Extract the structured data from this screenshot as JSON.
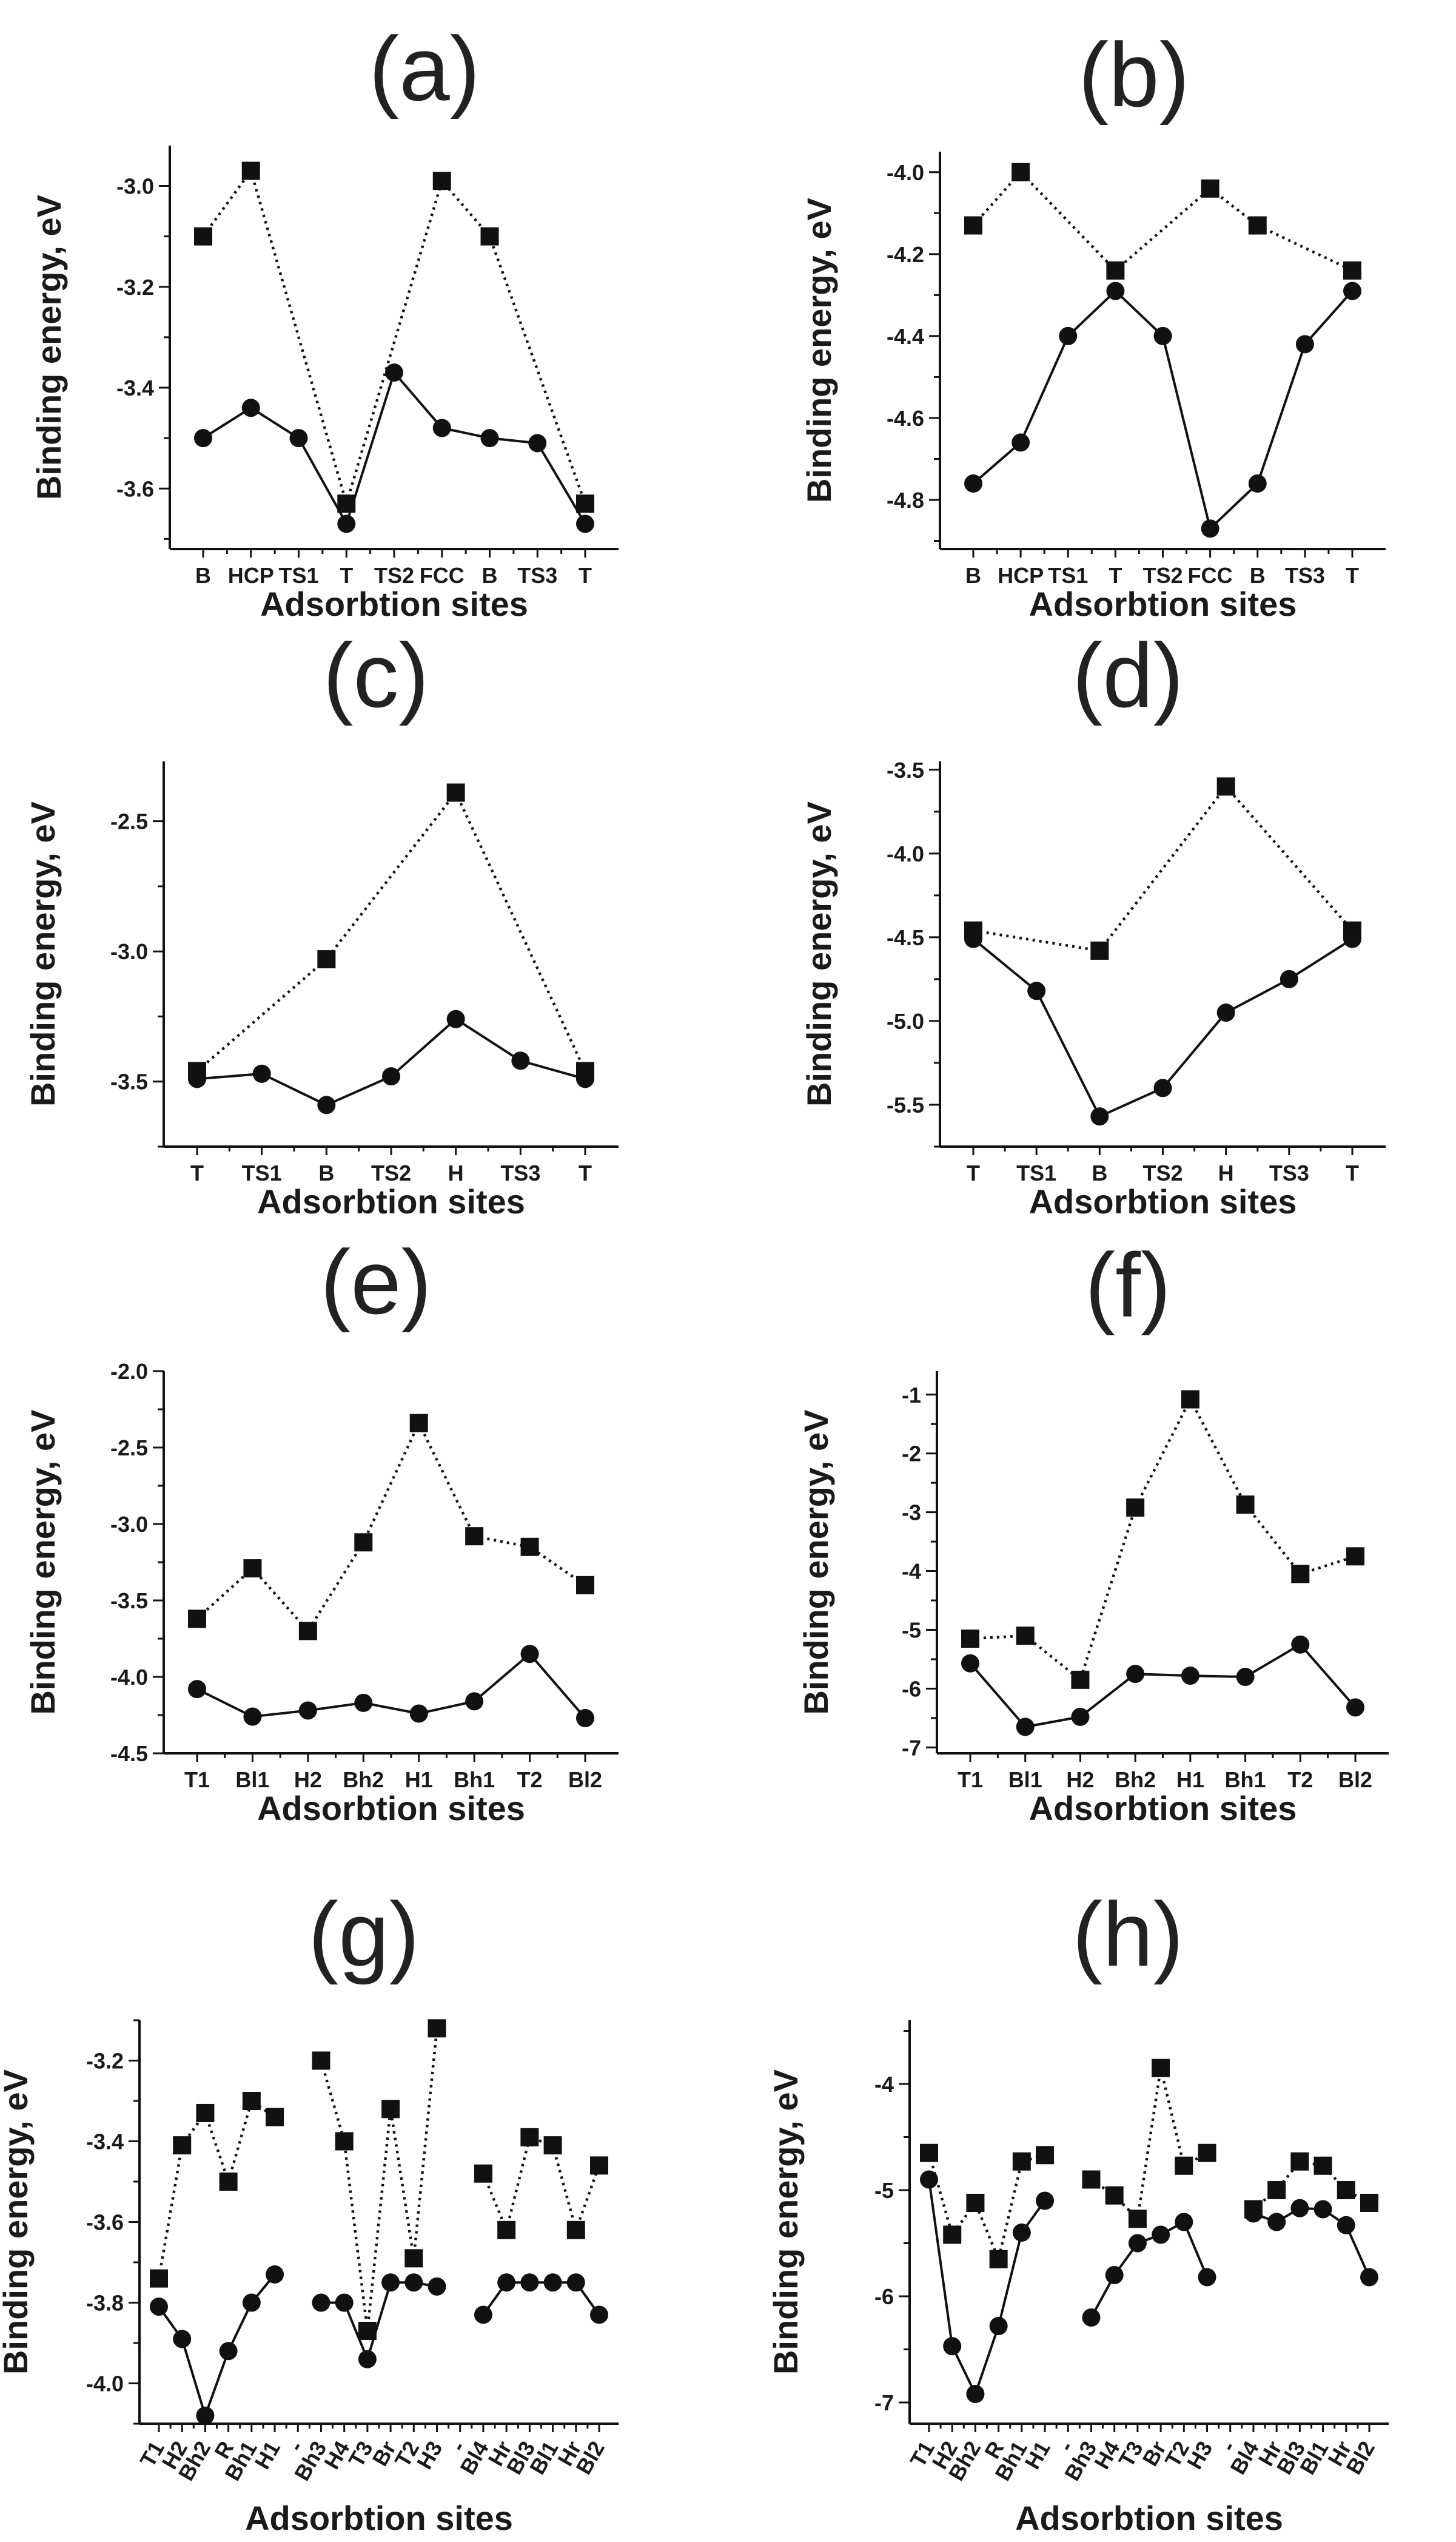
{
  "figure": {
    "panels": [
      "(a)",
      "(b)",
      "(c)",
      "(d)",
      "(e)",
      "(f)",
      "(g)",
      "(h)"
    ]
  },
  "style": {
    "line_color": "#111111",
    "marker_color": "#111111",
    "background": "#ffffff"
  },
  "chart_data": [
    {
      "type": "line",
      "panel": "(a)",
      "xlabel": "Adsorbtion sites",
      "ylabel": "Binding energy, eV",
      "categories": [
        "B",
        "HCP",
        "TS1",
        "T",
        "TS2",
        "FCC",
        "B",
        "TS3",
        "T"
      ],
      "ylim": [
        -3.72,
        -2.92
      ],
      "yticks": [
        -3.6,
        -3.4,
        -3.2,
        -3.0
      ],
      "ytick_labels": [
        "-3.6",
        "-3.4",
        "-3.2",
        "-3.0"
      ],
      "grid": false,
      "series": [
        {
          "marker": "square",
          "line": "dotted",
          "points": [
            [
              0,
              -3.1
            ],
            [
              1,
              -2.97
            ],
            [
              3,
              -3.63
            ],
            [
              5,
              -2.99
            ],
            [
              6,
              -3.1
            ],
            [
              8,
              -3.63
            ]
          ]
        },
        {
          "marker": "circle",
          "line": "solid",
          "points": [
            [
              0,
              -3.5
            ],
            [
              1,
              -3.44
            ],
            [
              2,
              -3.5
            ],
            [
              3,
              -3.67
            ],
            [
              4,
              -3.37
            ],
            [
              5,
              -3.48
            ],
            [
              6,
              -3.5
            ],
            [
              7,
              -3.51
            ],
            [
              8,
              -3.67
            ]
          ]
        }
      ]
    },
    {
      "type": "line",
      "panel": "(b)",
      "xlabel": "Adsorbtion sites",
      "ylabel": "Binding energy, eV",
      "categories": [
        "B",
        "HCP",
        "TS1",
        "T",
        "TS2",
        "FCC",
        "B",
        "TS3",
        "T"
      ],
      "ylim": [
        -4.92,
        -3.95
      ],
      "yticks": [
        -4.8,
        -4.6,
        -4.4,
        -4.2,
        -4.0
      ],
      "ytick_labels": [
        "-4.8",
        "-4.6",
        "-4.4",
        "-4.2",
        "-4.0"
      ],
      "grid": false,
      "series": [
        {
          "marker": "square",
          "line": "dotted",
          "points": [
            [
              0,
              -4.13
            ],
            [
              1,
              -4.0
            ],
            [
              3,
              -4.24
            ],
            [
              5,
              -4.04
            ],
            [
              6,
              -4.13
            ],
            [
              8,
              -4.24
            ]
          ]
        },
        {
          "marker": "circle",
          "line": "solid",
          "points": [
            [
              0,
              -4.76
            ],
            [
              1,
              -4.66
            ],
            [
              2,
              -4.4
            ],
            [
              3,
              -4.29
            ],
            [
              4,
              -4.4
            ],
            [
              5,
              -4.87
            ],
            [
              6,
              -4.76
            ],
            [
              7,
              -4.42
            ],
            [
              8,
              -4.29
            ]
          ]
        }
      ]
    },
    {
      "type": "line",
      "panel": "(c)",
      "xlabel": "Adsorbtion sites",
      "ylabel": "Binding energy, eV",
      "categories": [
        "T",
        "TS1",
        "B",
        "TS2",
        "H",
        "TS3",
        "T"
      ],
      "ylim": [
        -3.75,
        -2.27
      ],
      "yticks": [
        -3.5,
        -3.0,
        -2.5
      ],
      "ytick_labels": [
        "-3.5",
        "-3.0",
        "-2.5"
      ],
      "grid": false,
      "series": [
        {
          "marker": "square",
          "line": "dotted",
          "points": [
            [
              0,
              -3.46
            ],
            [
              2,
              -3.03
            ],
            [
              4,
              -2.39
            ],
            [
              6,
              -3.46
            ]
          ]
        },
        {
          "marker": "circle",
          "line": "solid",
          "points": [
            [
              0,
              -3.49
            ],
            [
              1,
              -3.47
            ],
            [
              2,
              -3.59
            ],
            [
              3,
              -3.48
            ],
            [
              4,
              -3.26
            ],
            [
              5,
              -3.42
            ],
            [
              6,
              -3.49
            ]
          ]
        }
      ]
    },
    {
      "type": "line",
      "panel": "(d)",
      "xlabel": "Adsorbtion sites",
      "ylabel": "Binding energy, eV",
      "categories": [
        "T",
        "TS1",
        "B",
        "TS2",
        "H",
        "TS3",
        "T"
      ],
      "ylim": [
        -5.75,
        -3.45
      ],
      "yticks": [
        -5.5,
        -5.0,
        -4.5,
        -4.0,
        -3.5
      ],
      "ytick_labels": [
        "-5.5",
        "-5.0",
        "-4.5",
        "-4.0",
        "-3.5"
      ],
      "grid": false,
      "series": [
        {
          "marker": "square",
          "line": "dotted",
          "points": [
            [
              0,
              -4.46
            ],
            [
              2,
              -4.58
            ],
            [
              4,
              -3.6
            ],
            [
              6,
              -4.46
            ]
          ]
        },
        {
          "marker": "circle",
          "line": "solid",
          "points": [
            [
              0,
              -4.51
            ],
            [
              1,
              -4.82
            ],
            [
              2,
              -5.57
            ],
            [
              3,
              -5.4
            ],
            [
              4,
              -4.95
            ],
            [
              5,
              -4.75
            ],
            [
              6,
              -4.51
            ]
          ]
        }
      ]
    },
    {
      "type": "line",
      "panel": "(e)",
      "xlabel": "Adsorbtion sites",
      "ylabel": "Binding energy, eV",
      "categories": [
        "T1",
        "Bl1",
        "H2",
        "Bh2",
        "H1",
        "Bh1",
        "T2",
        "Bl2"
      ],
      "ylim": [
        -4.5,
        -2.0
      ],
      "yticks": [
        -4.5,
        -4.0,
        -3.5,
        -3.0,
        -2.5,
        -2.0
      ],
      "ytick_labels": [
        "-4.5",
        "-4.0",
        "-3.5",
        "-3.0",
        "-2.5",
        "-2.0"
      ],
      "grid": false,
      "series": [
        {
          "marker": "square",
          "line": "dotted",
          "points": [
            [
              0,
              -3.62
            ],
            [
              1,
              -3.29
            ],
            [
              2,
              -3.7
            ],
            [
              3,
              -3.12
            ],
            [
              4,
              -2.34
            ],
            [
              5,
              -3.08
            ],
            [
              6,
              -3.15
            ],
            [
              7,
              -3.4
            ]
          ]
        },
        {
          "marker": "circle",
          "line": "solid",
          "points": [
            [
              0,
              -4.08
            ],
            [
              1,
              -4.26
            ],
            [
              2,
              -4.22
            ],
            [
              3,
              -4.17
            ],
            [
              4,
              -4.24
            ],
            [
              5,
              -4.16
            ],
            [
              6,
              -3.85
            ],
            [
              7,
              -4.27
            ]
          ]
        }
      ]
    },
    {
      "type": "line",
      "panel": "(f)",
      "xlabel": "Adsorbtion sites",
      "ylabel": "Binding energy, eV",
      "categories": [
        "T1",
        "Bl1",
        "H2",
        "Bh2",
        "H1",
        "Bh1",
        "T2",
        "Bl2"
      ],
      "ylim": [
        -7.1,
        -0.6
      ],
      "yticks": [
        -7,
        -6,
        -5,
        -4,
        -3,
        -2,
        -1
      ],
      "ytick_labels": [
        "-7",
        "-6",
        "-5",
        "-4",
        "-3",
        "-2",
        "-1"
      ],
      "grid": false,
      "series": [
        {
          "marker": "square",
          "line": "dotted",
          "points": [
            [
              0,
              -5.15
            ],
            [
              1,
              -5.1
            ],
            [
              2,
              -5.85
            ],
            [
              3,
              -2.92
            ],
            [
              4,
              -1.08
            ],
            [
              5,
              -2.87
            ],
            [
              6,
              -4.05
            ],
            [
              7,
              -3.75
            ]
          ]
        },
        {
          "marker": "circle",
          "line": "solid",
          "points": [
            [
              0,
              -5.57
            ],
            [
              1,
              -6.65
            ],
            [
              2,
              -6.48
            ],
            [
              3,
              -5.75
            ],
            [
              4,
              -5.78
            ],
            [
              5,
              -5.8
            ],
            [
              6,
              -5.25
            ],
            [
              7,
              -6.32
            ]
          ]
        }
      ]
    },
    {
      "type": "line",
      "panel": "(g)",
      "xlabel": "Adsorbtion sites",
      "ylabel": "Binding energy, eV",
      "categories": [
        "T1",
        "H2",
        "Bh2",
        "R",
        "Bh1",
        "H1",
        "-",
        "Bh3",
        "H4",
        "T3",
        "Br",
        "T2",
        "H3",
        "-",
        "Bl4",
        "Hr",
        "Bl3",
        "Bl1",
        "Hr",
        "Bl2"
      ],
      "ylim": [
        -4.1,
        -3.1
      ],
      "yticks": [
        -4.0,
        -3.8,
        -3.6,
        -3.4,
        -3.2
      ],
      "ytick_labels": [
        "-4.0",
        "-3.8",
        "-3.6",
        "-3.4",
        "-3.2"
      ],
      "grid": false,
      "series": [
        {
          "marker": "square",
          "line": "dotted",
          "points": [
            [
              0,
              -3.74
            ],
            [
              1,
              -3.41
            ],
            [
              2,
              -3.33
            ],
            [
              3,
              -3.5
            ],
            [
              4,
              -3.3
            ],
            [
              5,
              -3.34
            ],
            [
              null,
              null
            ],
            [
              7,
              -3.2
            ],
            [
              8,
              -3.4
            ],
            [
              9,
              -3.87
            ],
            [
              10,
              -3.32
            ],
            [
              11,
              -3.69
            ],
            [
              12,
              -3.12
            ],
            [
              null,
              null
            ],
            [
              14,
              -3.48
            ],
            [
              15,
              -3.62
            ],
            [
              16,
              -3.39
            ],
            [
              17,
              -3.41
            ],
            [
              18,
              -3.62
            ],
            [
              19,
              -3.46
            ]
          ]
        },
        {
          "marker": "circle",
          "line": "solid",
          "points": [
            [
              0,
              -3.81
            ],
            [
              1,
              -3.89
            ],
            [
              2,
              -4.08
            ],
            [
              3,
              -3.92
            ],
            [
              4,
              -3.8
            ],
            [
              5,
              -3.73
            ],
            [
              null,
              null
            ],
            [
              7,
              -3.8
            ],
            [
              8,
              -3.8
            ],
            [
              9,
              -3.94
            ],
            [
              10,
              -3.75
            ],
            [
              11,
              -3.75
            ],
            [
              12,
              -3.76
            ],
            [
              null,
              null
            ],
            [
              14,
              -3.83
            ],
            [
              15,
              -3.75
            ],
            [
              16,
              -3.75
            ],
            [
              17,
              -3.75
            ],
            [
              18,
              -3.75
            ],
            [
              19,
              -3.83
            ]
          ]
        }
      ]
    },
    {
      "type": "line",
      "panel": "(h)",
      "xlabel": "Adsorbtion sites",
      "ylabel": "Binding energy, eV",
      "categories": [
        "T1",
        "H2",
        "Bh2",
        "R",
        "Bh1",
        "H1",
        "-",
        "Bh3",
        "H4",
        "T3",
        "Br",
        "T2",
        "H3",
        "-",
        "Bl4",
        "Hr",
        "Bl3",
        "Bl1",
        "Hr",
        "Bl2"
      ],
      "ylim": [
        -7.2,
        -3.4
      ],
      "yticks": [
        -7,
        -6,
        -5,
        -4
      ],
      "ytick_labels": [
        "-7",
        "-6",
        "-5",
        "-4"
      ],
      "grid": false,
      "series": [
        {
          "marker": "square",
          "line": "dotted",
          "points": [
            [
              0,
              -4.65
            ],
            [
              1,
              -5.42
            ],
            [
              2,
              -5.12
            ],
            [
              3,
              -5.65
            ],
            [
              4,
              -4.73
            ],
            [
              5,
              -4.67
            ],
            [
              null,
              null
            ],
            [
              7,
              -4.9
            ],
            [
              8,
              -5.05
            ],
            [
              9,
              -5.27
            ],
            [
              10,
              -3.85
            ],
            [
              11,
              -4.77
            ],
            [
              12,
              -4.65
            ],
            [
              null,
              null
            ],
            [
              14,
              -5.18
            ],
            [
              15,
              -5.0
            ],
            [
              16,
              -4.73
            ],
            [
              17,
              -4.77
            ],
            [
              18,
              -5.0
            ],
            [
              19,
              -5.12
            ]
          ]
        },
        {
          "marker": "circle",
          "line": "solid",
          "points": [
            [
              0,
              -4.9
            ],
            [
              1,
              -6.47
            ],
            [
              2,
              -6.92
            ],
            [
              3,
              -6.28
            ],
            [
              4,
              -5.4
            ],
            [
              5,
              -5.1
            ],
            [
              null,
              null
            ],
            [
              7,
              -6.2
            ],
            [
              8,
              -5.8
            ],
            [
              9,
              -5.5
            ],
            [
              10,
              -5.42
            ],
            [
              11,
              -5.3
            ],
            [
              12,
              -5.82
            ],
            [
              null,
              null
            ],
            [
              14,
              -5.22
            ],
            [
              15,
              -5.3
            ],
            [
              16,
              -5.17
            ],
            [
              17,
              -5.18
            ],
            [
              18,
              -5.33
            ],
            [
              19,
              -5.82
            ]
          ]
        }
      ]
    }
  ]
}
